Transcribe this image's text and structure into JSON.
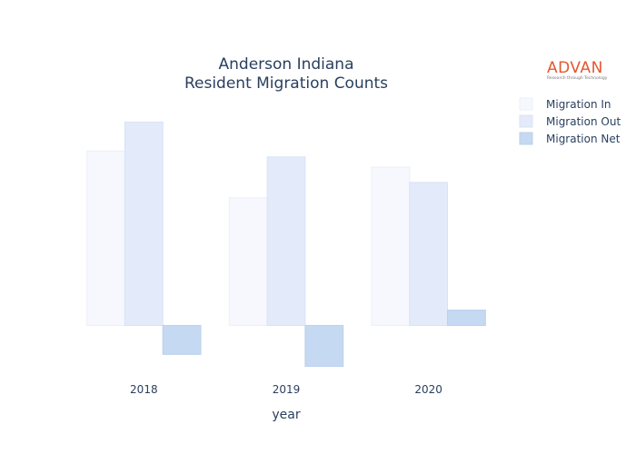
{
  "chart_data": {
    "type": "bar",
    "title": [
      "Anderson Indiana",
      "Resident Migration Counts"
    ],
    "xlabel": "year",
    "ylabel": "",
    "categories": [
      "2018",
      "2019",
      "2020"
    ],
    "series": [
      {
        "name": "Migration In",
        "values": [
          2050,
          1500,
          1860
        ],
        "color": "#f6f8fe",
        "stroke": "#eceff9"
      },
      {
        "name": "Migration Out",
        "values": [
          2390,
          1980,
          1680
        ],
        "color": "#e3ebfa",
        "stroke": "#d8e2f6"
      },
      {
        "name": "Migration Net",
        "values": [
          -340,
          -480,
          180
        ],
        "color": "#c6d9f2",
        "stroke": "#bccfeb"
      }
    ],
    "ylim": [
      -550,
      2650
    ],
    "grid": false,
    "yaxis_ticks_visible": false,
    "legend_position": "top-right"
  },
  "logo": {
    "word": "ADVAN",
    "tagline": "Research through Technology",
    "color": "#e4572e"
  }
}
